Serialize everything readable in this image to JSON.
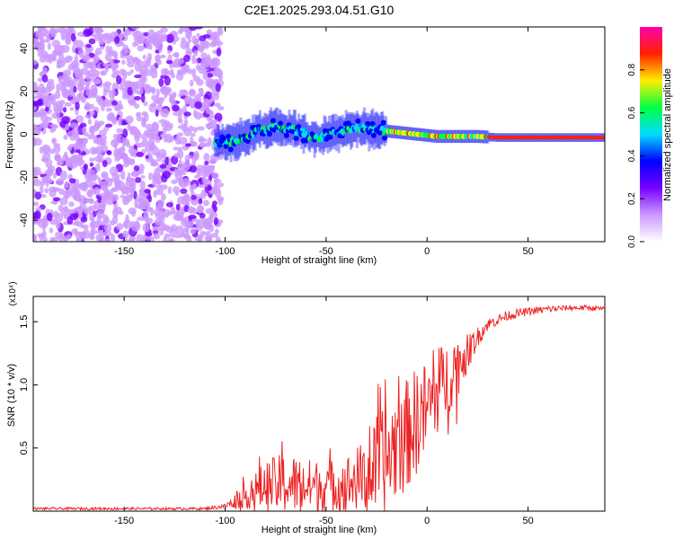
{
  "figure": {
    "title": "C2E1.2025.293.04.51.G10"
  },
  "chart_data": [
    {
      "type": "heatmap",
      "name": "spectrogram",
      "xlabel": "Height of straight line (km)",
      "ylabel": "Frequency (Hz)",
      "xlim": [
        -195,
        88
      ],
      "ylim": [
        -50,
        50
      ],
      "xticks": [
        -150,
        -100,
        -50,
        0,
        50
      ],
      "yticks": [
        40,
        20,
        0,
        -20,
        -40
      ],
      "colorbar": {
        "label": "Normalized spectral amplitude",
        "range": [
          0,
          1
        ],
        "ticks": [
          0.0,
          0.2,
          0.4,
          0.6,
          0.8
        ],
        "colors": [
          "#ffffff",
          "#cc99ff",
          "#7700ff",
          "#0000ff",
          "#00ddff",
          "#00ff44",
          "#ffee00",
          "#ff2200",
          "#ff00aa"
        ]
      },
      "signal_trace": {
        "x": [
          -105,
          -95,
          -85,
          -75,
          -65,
          -55,
          -45,
          -35,
          -25,
          -15,
          -5,
          5,
          15,
          25,
          35,
          45,
          55,
          65,
          75,
          88
        ],
        "frequency": [
          -4,
          -3,
          1,
          3,
          2,
          -2,
          1,
          3,
          2,
          1,
          0,
          -1,
          -1,
          -1,
          -1.5,
          -1.5,
          -1.5,
          -1.5,
          -1.5,
          -1.5
        ]
      },
      "noise_region_x": [
        -195,
        -102
      ]
    },
    {
      "type": "line",
      "name": "snr",
      "xlabel": "Height of straight line (km)",
      "ylabel": "SNR (10 * v/v)",
      "multiplier_label": "(x10⁴)",
      "xlim": [
        -195,
        88
      ],
      "ylim": [
        0,
        1.7
      ],
      "xticks": [
        -150,
        -100,
        -50,
        0,
        50
      ],
      "yticks": [
        0.5,
        1.0,
        1.5
      ],
      "ytick_labels": [
        "0.5",
        "1.0",
        "1.5"
      ],
      "color": "#ee2222",
      "envelope": {
        "x": [
          -195,
          -110,
          -100,
          -90,
          -80,
          -70,
          -60,
          -50,
          -40,
          -30,
          -20,
          -15,
          -10,
          -5,
          0,
          5,
          10,
          15,
          20,
          25,
          30,
          40,
          50,
          60,
          70,
          80,
          88
        ],
        "mean": [
          0.02,
          0.02,
          0.04,
          0.12,
          0.2,
          0.22,
          0.2,
          0.2,
          0.22,
          0.28,
          0.4,
          0.55,
          0.6,
          0.75,
          0.8,
          0.95,
          1.05,
          1.15,
          1.25,
          1.38,
          1.48,
          1.55,
          1.58,
          1.6,
          1.61,
          1.61,
          1.6
        ],
        "spread": [
          0.01,
          0.01,
          0.02,
          0.1,
          0.2,
          0.25,
          0.22,
          0.2,
          0.22,
          0.3,
          0.45,
          0.45,
          0.45,
          0.4,
          0.4,
          0.35,
          0.3,
          0.25,
          0.15,
          0.08,
          0.05,
          0.04,
          0.03,
          0.03,
          0.02,
          0.02,
          0.02
        ]
      }
    }
  ]
}
